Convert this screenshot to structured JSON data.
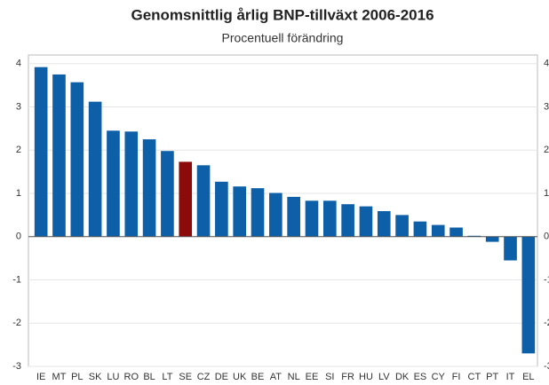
{
  "chart_data": {
    "type": "bar",
    "title": "Genomsnittlig årlig BNP-tillväxt 2006-2016",
    "subtitle": "Procentuell förändring",
    "categories": [
      "IE",
      "MT",
      "PL",
      "SK",
      "LU",
      "RO",
      "BL",
      "LT",
      "SE",
      "CZ",
      "DE",
      "UK",
      "BE",
      "AT",
      "NL",
      "EE",
      "SI",
      "FR",
      "HU",
      "LV",
      "DK",
      "ES",
      "CY",
      "FI",
      "CT",
      "PT",
      "IT",
      "EL"
    ],
    "values": [
      3.92,
      3.75,
      3.57,
      3.12,
      2.45,
      2.43,
      2.25,
      1.98,
      1.73,
      1.65,
      1.27,
      1.16,
      1.12,
      1.01,
      0.92,
      0.83,
      0.83,
      0.75,
      0.7,
      0.59,
      0.5,
      0.35,
      0.27,
      0.21,
      0.02,
      -0.12,
      -0.55,
      -2.7
    ],
    "colors": [
      "#0d5fa8",
      "#0d5fa8",
      "#0d5fa8",
      "#0d5fa8",
      "#0d5fa8",
      "#0d5fa8",
      "#0d5fa8",
      "#0d5fa8",
      "#8b0a0a",
      "#0d5fa8",
      "#0d5fa8",
      "#0d5fa8",
      "#0d5fa8",
      "#0d5fa8",
      "#0d5fa8",
      "#0d5fa8",
      "#0d5fa8",
      "#0d5fa8",
      "#0d5fa8",
      "#0d5fa8",
      "#0d5fa8",
      "#0d5fa8",
      "#0d5fa8",
      "#0d5fa8",
      "#0d5fa8",
      "#0d5fa8",
      "#0d5fa8",
      "#0d5fa8"
    ],
    "ylim": [
      -3,
      4.2
    ],
    "yticks": [
      -3,
      -2,
      -1,
      0,
      1,
      2,
      3,
      4
    ],
    "grid": true
  }
}
